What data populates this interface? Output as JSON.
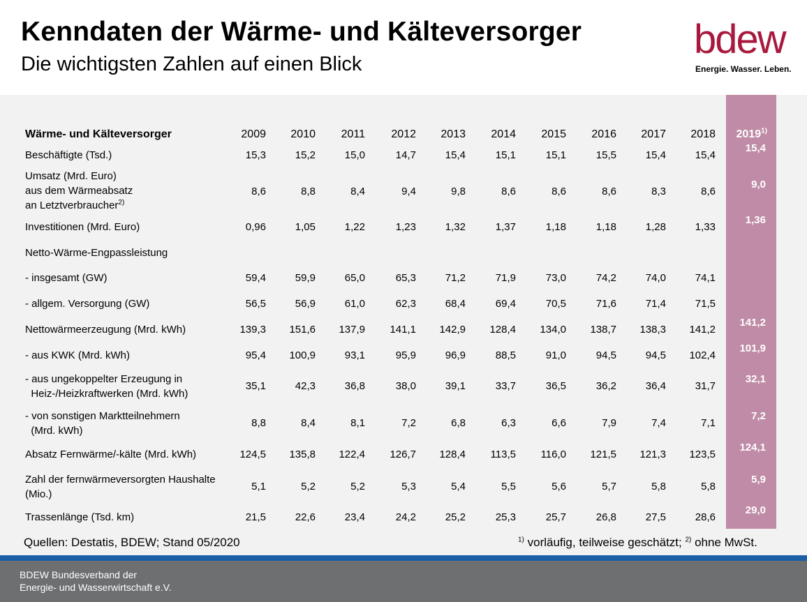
{
  "header": {
    "title": "Kenndaten der Wärme- und Kälteversorger",
    "subtitle": "Die wichtigsten Zahlen auf einen Blick"
  },
  "logo": {
    "word": "bdew",
    "tagline": "Energie. Wasser. Leben.",
    "color": "#a8193d"
  },
  "table": {
    "header_label": "Wärme- und Kälteversorger",
    "years": [
      "2009",
      "2010",
      "2011",
      "2012",
      "2013",
      "2014",
      "2015",
      "2016",
      "2017",
      "2018"
    ],
    "highlight_year": "2019",
    "highlight_year_note": "1)",
    "highlight_color": "#bf8ba6",
    "rows": [
      {
        "label_lines": [
          "Beschäftigte (Tsd.)"
        ],
        "values": [
          "15,3",
          "15,2",
          "15,0",
          "14,7",
          "15,4",
          "15,1",
          "15,1",
          "15,5",
          "15,4",
          "15,4"
        ],
        "highlight": "15,4"
      },
      {
        "label_lines": [
          "Umsatz (Mrd. Euro)",
          "aus dem Wärmeabsatz",
          "an Letztverbraucher"
        ],
        "label_note": "2)",
        "values": [
          "8,6",
          "8,8",
          "8,4",
          "9,4",
          "9,8",
          "8,6",
          "8,6",
          "8,6",
          "8,3",
          "8,6"
        ],
        "highlight": "9,0"
      },
      {
        "label_lines": [
          "Investitionen (Mrd. Euro)"
        ],
        "values": [
          "0,96",
          "1,05",
          "1,22",
          "1,23",
          "1,32",
          "1,37",
          "1,18",
          "1,18",
          "1,28",
          "1,33"
        ],
        "highlight": "1,36"
      },
      {
        "label_lines": [
          "Netto-Wärme-Engpassleistung"
        ],
        "values": [],
        "highlight": ""
      },
      {
        "label_lines": [
          "- insgesamt (GW)"
        ],
        "values": [
          "59,4",
          "59,9",
          "65,0",
          "65,3",
          "71,2",
          "71,9",
          "73,0",
          "74,2",
          "74,0",
          "74,1"
        ],
        "highlight": ""
      },
      {
        "label_lines": [
          "- allgem. Versorgung (GW)"
        ],
        "values": [
          "56,5",
          "56,9",
          "61,0",
          "62,3",
          "68,4",
          "69,4",
          "70,5",
          "71,6",
          "71,4",
          "71,5"
        ],
        "highlight": ""
      },
      {
        "label_lines": [
          "Nettowärmeerzeugung (Mrd. kWh)"
        ],
        "values": [
          "139,3",
          "151,6",
          "137,9",
          "141,1",
          "142,9",
          "128,4",
          "134,0",
          "138,7",
          "138,3",
          "141,2"
        ],
        "highlight": "141,2"
      },
      {
        "label_lines": [
          "- aus KWK (Mrd. kWh)"
        ],
        "values": [
          "95,4",
          "100,9",
          "93,1",
          "95,9",
          "96,9",
          "88,5",
          "91,0",
          "94,5",
          "94,5",
          "102,4"
        ],
        "highlight": "101,9"
      },
      {
        "label_lines": [
          "- aus ungekoppelter Erzeugung in",
          "  Heiz-/Heizkraftwerken (Mrd. kWh)"
        ],
        "values": [
          "35,1",
          "42,3",
          "36,8",
          "38,0",
          "39,1",
          "33,7",
          "36,5",
          "36,2",
          "36,4",
          "31,7"
        ],
        "highlight": "32,1"
      },
      {
        "label_lines": [
          "- von sonstigen Marktteilnehmern",
          "  (Mrd. kWh)"
        ],
        "values": [
          "8,8",
          "8,4",
          "8,1",
          "7,2",
          "6,8",
          "6,3",
          "6,6",
          "7,9",
          "7,4",
          "7,1"
        ],
        "highlight": "7,2"
      },
      {
        "label_lines": [
          "Absatz Fernwärme/-kälte (Mrd. kWh)"
        ],
        "values": [
          "124,5",
          "135,8",
          "122,4",
          "126,7",
          "128,4",
          "113,5",
          "116,0",
          "121,5",
          "121,3",
          "123,5"
        ],
        "highlight": "124,1"
      },
      {
        "label_lines": [
          "Zahl der fernwärmeversorgten Haushalte",
          "(Mio.)"
        ],
        "values": [
          "5,1",
          "5,2",
          "5,2",
          "5,3",
          "5,4",
          "5,5",
          "5,6",
          "5,7",
          "5,8",
          "5,8"
        ],
        "highlight": "5,9"
      },
      {
        "label_lines": [
          "Trassenlänge (Tsd. km)"
        ],
        "values": [
          "21,5",
          "22,6",
          "23,4",
          "24,2",
          "25,2",
          "25,3",
          "25,7",
          "26,8",
          "27,5",
          "28,6"
        ],
        "highlight": "29,0"
      }
    ]
  },
  "notes": {
    "source": "Quellen: Destatis, BDEW; Stand 05/2020",
    "fn1_mark": "1)",
    "fn1_text": " vorläufig, teilweise geschätzt; ",
    "fn2_mark": "2)",
    "fn2_text": " ohne MwSt."
  },
  "footer": {
    "line1": "BDEW Bundesverband der",
    "line2": "Energie- und Wasserwirtschaft e.V."
  },
  "colors": {
    "footer_bg": "#6e6f71",
    "accent_bar": "#1a5fa6",
    "panel_bg": "#f2f2f2"
  }
}
